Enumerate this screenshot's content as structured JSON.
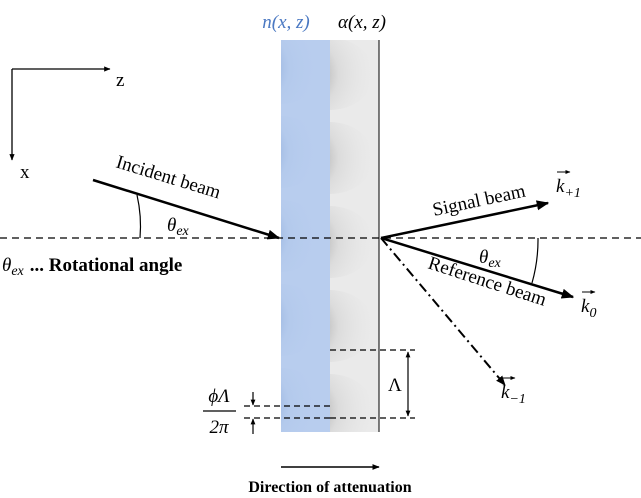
{
  "header": {
    "refractive_index": "n(x, z)",
    "absorption": "α(x, z)"
  },
  "axes": {
    "z": "z",
    "x": "x"
  },
  "beams": {
    "incident": "Incident beam",
    "signal": "Signal beam",
    "reference": "Reference beam"
  },
  "angles": {
    "incident": {
      "symbol": "θ",
      "subscript": "ex"
    },
    "reflected": {
      "symbol": "θ",
      "subscript": "ex"
    },
    "legend": {
      "symbol": "θ",
      "subscript": "ex",
      "text": "... Rotational angle"
    }
  },
  "wave_vectors": [
    {
      "symbol": "k",
      "subscript": "+1"
    },
    {
      "symbol": "k",
      "subscript": "0"
    },
    {
      "symbol": "k",
      "subscript": "−1"
    }
  ],
  "period": "Λ",
  "phase_shift": {
    "numerator": "ϕΛ",
    "denominator": "2π"
  },
  "footer": "Direction of attenuation"
}
